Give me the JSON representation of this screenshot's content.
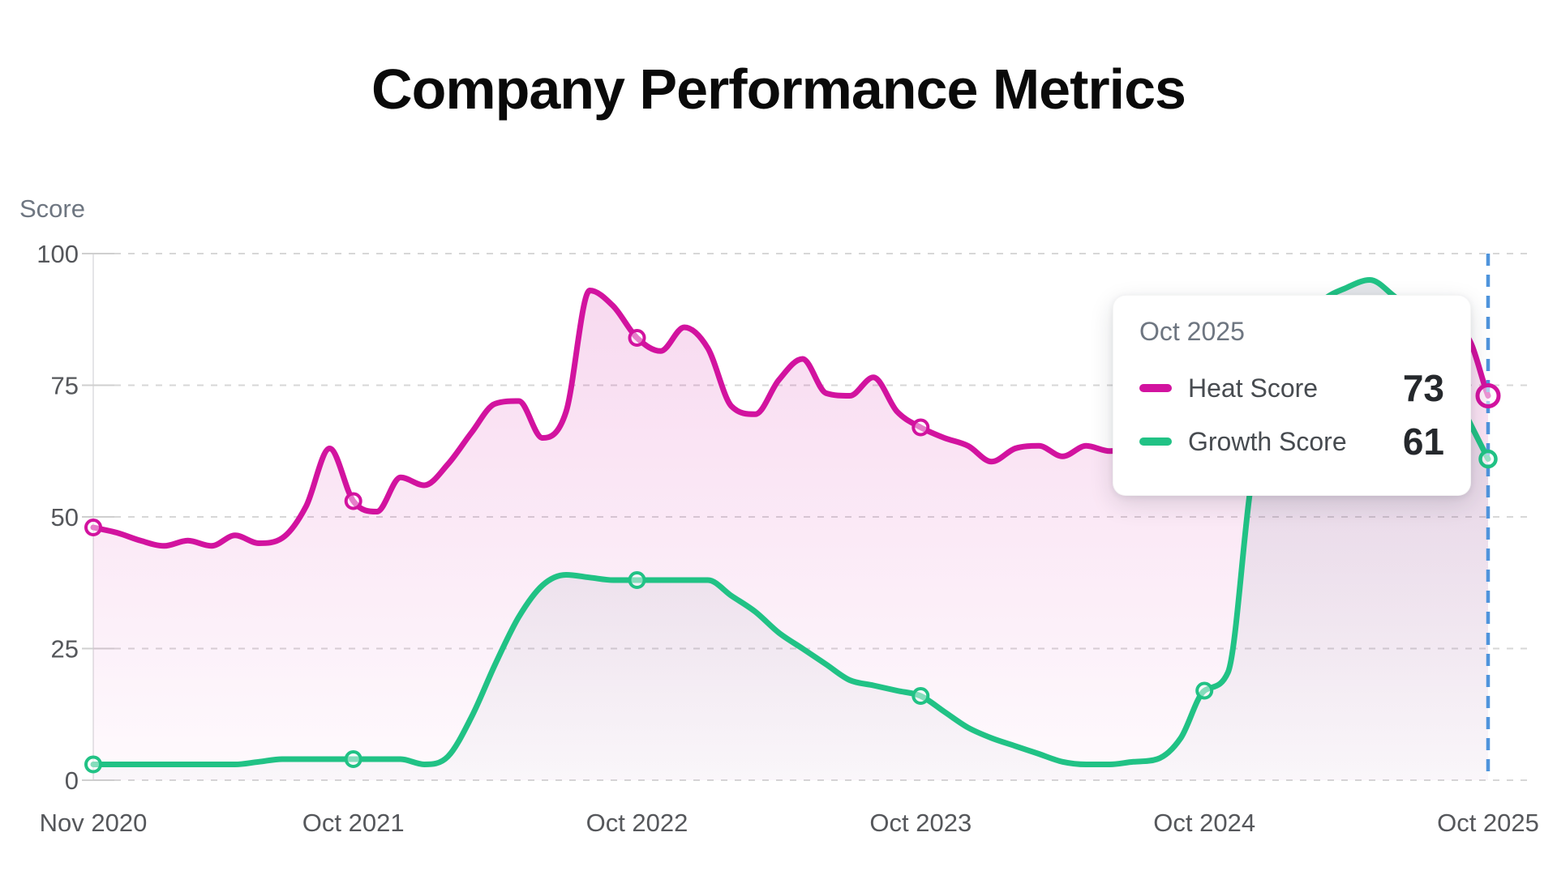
{
  "title": "Company Performance Metrics",
  "y_axis": {
    "label": "Score",
    "ticks": [
      100,
      75,
      50,
      25,
      0
    ]
  },
  "x_axis": {
    "tick_labels": [
      "Nov 2020",
      "Oct 2021",
      "Oct 2022",
      "Oct 2023",
      "Oct 2024",
      "Oct 2025"
    ]
  },
  "tooltip": {
    "title": "Oct 2025",
    "rows": [
      {
        "label": "Heat Score",
        "value": "73",
        "color": "#d2139f"
      },
      {
        "label": "Growth Score",
        "value": "61",
        "color": "#21c285"
      }
    ]
  },
  "colors": {
    "heat_line": "#d2139f",
    "growth_line": "#21c285",
    "heat_fill": "#d2139f",
    "growth_fill": "#6e7b8e",
    "crosshair": "#4f94dc",
    "grid": "#d7d7d7",
    "axis_line": "#e5e5e7",
    "tick_stub": "#cfcfcf"
  },
  "chart_data": {
    "type": "line",
    "title": "Company Performance Metrics",
    "xlabel": "",
    "ylabel": "Score",
    "ylim": [
      0,
      100
    ],
    "grid": true,
    "x_start": "Nov 2020",
    "x_end": "Oct 2025",
    "x_step": "1 month",
    "x_tick_labels": [
      "Nov 2020",
      "Oct 2021",
      "Oct 2022",
      "Oct 2023",
      "Oct 2024",
      "Oct 2025"
    ],
    "x_tick_indices": [
      0,
      11,
      23,
      35,
      47,
      59
    ],
    "marker_indices": [
      0,
      11,
      23,
      35,
      47
    ],
    "hover": {
      "x_label": "Oct 2025",
      "index": 59,
      "values": {
        "Heat Score": 73,
        "Growth Score": 61
      }
    },
    "series": [
      {
        "name": "Heat Score",
        "color": "#d2139f",
        "values": [
          48,
          47,
          45.5,
          44.5,
          45.5,
          44.5,
          46.5,
          45,
          46,
          52,
          63,
          53,
          51,
          57.5,
          56,
          60,
          66,
          71.5,
          72,
          65,
          70,
          93,
          90,
          84,
          81.5,
          86,
          82,
          71,
          69.5,
          76,
          80,
          73.5,
          73,
          76.5,
          70,
          67,
          65,
          63.5,
          60.5,
          63,
          63.5,
          61.5,
          63.5,
          62.5,
          63,
          63.5,
          64.5,
          65.5,
          66.5,
          68,
          69.5,
          71.5,
          73.5,
          75.5,
          78,
          80,
          82,
          83.5,
          84.5,
          73
        ]
      },
      {
        "name": "Growth Score",
        "color": "#21c285",
        "values": [
          3,
          3,
          3,
          3,
          3,
          3,
          3,
          3.5,
          4,
          4,
          4,
          4,
          4,
          4,
          3,
          4.5,
          12,
          22,
          31,
          37,
          39,
          38.5,
          38,
          38,
          38,
          38,
          38,
          35,
          32,
          28,
          25,
          22,
          19,
          18,
          17,
          16,
          13,
          10,
          8,
          6.5,
          5,
          3.5,
          3,
          3,
          3.5,
          4,
          8,
          17,
          20.5,
          57,
          75,
          85,
          91,
          93.5,
          95,
          92,
          88,
          80,
          70,
          61
        ]
      }
    ]
  }
}
